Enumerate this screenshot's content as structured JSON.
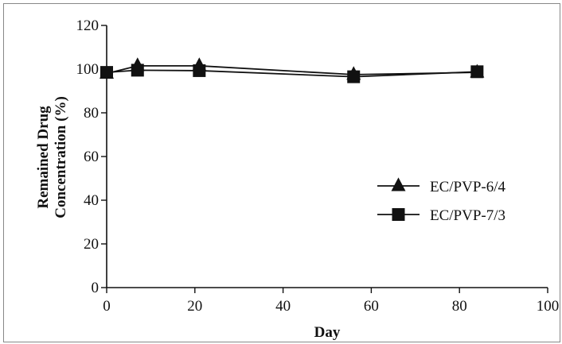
{
  "chart_data": {
    "type": "line",
    "title": "",
    "xlabel": "Day",
    "ylabel_lines": [
      "Remained Drug",
      "Concentration (%)"
    ],
    "xlim": [
      0,
      100
    ],
    "ylim": [
      0,
      120
    ],
    "xticks": [
      0,
      20,
      40,
      60,
      80,
      100
    ],
    "yticks": [
      0,
      20,
      40,
      60,
      80,
      100,
      120
    ],
    "grid": false,
    "legend_position": "right-middle",
    "series": [
      {
        "name": "EC/PVP-6/4",
        "marker": "triangle",
        "color": "#111111",
        "x": [
          0,
          7,
          21,
          56,
          84
        ],
        "y": [
          98,
          101.5,
          101.5,
          97.5,
          98.5
        ]
      },
      {
        "name": "EC/PVP-7/3",
        "marker": "square",
        "color": "#111111",
        "x": [
          0,
          7,
          21,
          56,
          84
        ],
        "y": [
          98.5,
          99.5,
          99.3,
          96.5,
          98.8
        ]
      }
    ]
  }
}
